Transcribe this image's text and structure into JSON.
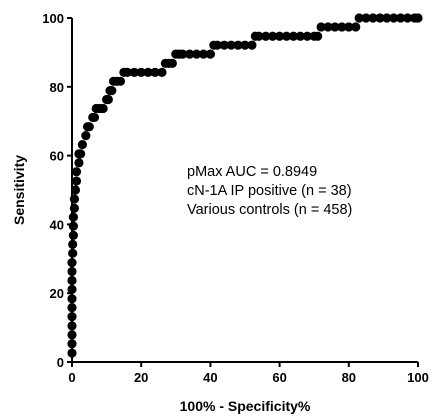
{
  "chart_data": {
    "type": "scatter",
    "xlabel": "100% - Specificity%",
    "ylabel": "Sensitivity",
    "xlim": [
      0,
      100
    ],
    "ylim": [
      0,
      100
    ],
    "x_ticks": [
      "0",
      "20",
      "40",
      "60",
      "80",
      "100"
    ],
    "y_ticks": [
      "0",
      "20",
      "40",
      "60",
      "80",
      "100"
    ],
    "grid": false,
    "marker_color": "#000000",
    "annotations": [
      "pMax AUC = 0.8949",
      "cN-1A IP positive (n = 38)",
      "Various controls (n = 458)"
    ],
    "series": [
      {
        "x": [
          0,
          0,
          0,
          0,
          0,
          0,
          0,
          0,
          0,
          0,
          0,
          0.2,
          0.2,
          0.4,
          0.4,
          0.4,
          0.7,
          0.7,
          1,
          1.3,
          1.3,
          2,
          2,
          2.5,
          3,
          4,
          4.5,
          5,
          6,
          6.5,
          7,
          8,
          9,
          10,
          10.5,
          11,
          11.5,
          12,
          13,
          14,
          15,
          16,
          18,
          20,
          22,
          24,
          26,
          27,
          28,
          29,
          30,
          31,
          32,
          34,
          36,
          38,
          40,
          41,
          42,
          44,
          46,
          48,
          50,
          52,
          53,
          54,
          56,
          58,
          60,
          62,
          64,
          66,
          68,
          70,
          71,
          72,
          74,
          76,
          78,
          80,
          82,
          83,
          85,
          87,
          89,
          91,
          93,
          95,
          97,
          99,
          100
        ],
        "y": [
          2.6,
          5.3,
          7.9,
          10.5,
          13.2,
          15.8,
          18.4,
          21.1,
          23.7,
          26.3,
          28.9,
          31.6,
          34.2,
          36.8,
          39.5,
          42.1,
          44.7,
          47.4,
          50,
          52.6,
          55.3,
          57.9,
          60.5,
          60.5,
          63.2,
          65.8,
          68.4,
          68.4,
          71.1,
          71.1,
          73.7,
          73.7,
          73.7,
          76.3,
          76.3,
          78.9,
          78.9,
          81.6,
          81.6,
          81.6,
          84.2,
          84.2,
          84.2,
          84.2,
          84.2,
          84.2,
          84.2,
          86.8,
          86.8,
          86.8,
          89.5,
          89.5,
          89.5,
          89.5,
          89.5,
          89.5,
          89.5,
          92.1,
          92.1,
          92.1,
          92.1,
          92.1,
          92.1,
          92.1,
          94.7,
          94.7,
          94.7,
          94.7,
          94.7,
          94.7,
          94.7,
          94.7,
          94.7,
          94.7,
          94.7,
          97.4,
          97.4,
          97.4,
          97.4,
          97.4,
          97.4,
          100,
          100,
          100,
          100,
          100,
          100,
          100,
          100,
          100,
          100
        ]
      }
    ]
  }
}
